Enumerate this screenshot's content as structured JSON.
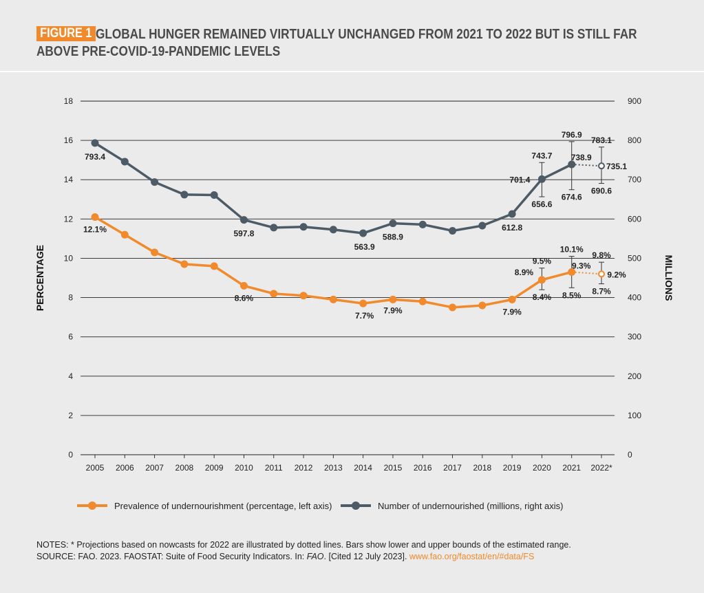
{
  "header": {
    "figure_label": "FIGURE 1",
    "title": "GLOBAL HUNGER REMAINED VIRTUALLY UNCHANGED FROM 2021 TO 2022 BUT IS STILL FAR ABOVE PRE-COVID-19-PANDEMIC LEVELS"
  },
  "colors": {
    "orange": "#f08a2c",
    "slate": "#4d5b66",
    "background": "#ebebeb"
  },
  "legend": [
    {
      "label": "Prevalence of undernourishment (percentage, left axis)",
      "color": "#f08a2c"
    },
    {
      "label": "Number of undernourished (millions, right axis)",
      "color": "#4d5b66"
    }
  ],
  "notes": {
    "line1": "NOTES: * Projections based on nowcasts for 2022 are illustrated by dotted lines. Bars show lower and upper bounds of the estimated range.",
    "source_prefix": "SOURCE: FAO. 2023. FAOSTAT: Suite of Food Security Indicators. In: ",
    "source_italic": "FAO",
    "source_mid": ". [Cited 12 July 2023]. ",
    "source_link": "www.fao.org/faostat/en/#data/FS"
  },
  "chart_data": {
    "type": "line",
    "categories": [
      "2005",
      "2006",
      "2007",
      "2008",
      "2009",
      "2010",
      "2011",
      "2012",
      "2013",
      "2014",
      "2015",
      "2016",
      "2017",
      "2018",
      "2019",
      "2020",
      "2021",
      "2022*"
    ],
    "ylabel_left": "PERCENTAGE",
    "ylabel_right": "MILLIONS",
    "ylim_left": [
      0,
      18
    ],
    "ylim_right": [
      0,
      900
    ],
    "yticks_left": [
      "0",
      "2",
      "4",
      "6",
      "8",
      "10",
      "12",
      "14",
      "16",
      "18"
    ],
    "yticks_right": [
      "0",
      "100",
      "200",
      "300",
      "400",
      "500",
      "600",
      "700",
      "800",
      "900"
    ],
    "grid": true,
    "series": [
      {
        "name": "Prevalence of undernourishment (percentage, left axis)",
        "axis": "left",
        "color": "#f08a2c",
        "values": [
          12.1,
          11.2,
          10.3,
          9.7,
          9.6,
          8.6,
          8.2,
          8.1,
          7.9,
          7.7,
          7.9,
          7.8,
          7.5,
          7.6,
          7.9,
          8.9,
          9.3,
          9.2
        ],
        "projected_from_index": 16,
        "data_labels": [
          {
            "index": 0,
            "text": "12.1%",
            "dx": 0,
            "dy": 22
          },
          {
            "index": 5,
            "text": "8.6%",
            "dx": 0,
            "dy": 22
          },
          {
            "index": 9,
            "text": "7.7%",
            "dx": 2,
            "dy": 22
          },
          {
            "index": 10,
            "text": "7.9%",
            "dx": 0,
            "dy": 20
          },
          {
            "index": 14,
            "text": "7.9%",
            "dx": 0,
            "dy": 22
          },
          {
            "index": 15,
            "text": "8.9%",
            "dx": -26,
            "dy": -7
          },
          {
            "index": 16,
            "text": "9.3%",
            "dx": 14,
            "dy": -5
          },
          {
            "index": 17,
            "text": "9.2%",
            "dx": 22,
            "dy": 5
          }
        ],
        "ranges": [
          {
            "index": 15,
            "low": 8.4,
            "high": 9.5,
            "low_text": "8.4%",
            "high_text": "9.5%"
          },
          {
            "index": 16,
            "low": 8.5,
            "high": 10.1,
            "low_text": "8.5%",
            "high_text": "10.1%"
          },
          {
            "index": 17,
            "low": 8.7,
            "high": 9.8,
            "low_text": "8.7%",
            "high_text": "9.8%"
          }
        ]
      },
      {
        "name": "Number of undernourished (millions, right axis)",
        "axis": "right",
        "color": "#4d5b66",
        "values": [
          793.4,
          746,
          694,
          662,
          661,
          597.8,
          578,
          580,
          573,
          563.9,
          588.9,
          586,
          570,
          583,
          612.8,
          701.4,
          738.9,
          735.1
        ],
        "projected_from_index": 16,
        "data_labels": [
          {
            "index": 0,
            "text": "793.4",
            "dx": 0,
            "dy": 24
          },
          {
            "index": 5,
            "text": "597.8",
            "dx": 0,
            "dy": 24
          },
          {
            "index": 9,
            "text": "563.9",
            "dx": 2,
            "dy": 24
          },
          {
            "index": 10,
            "text": "588.9",
            "dx": 0,
            "dy": 24
          },
          {
            "index": 14,
            "text": "612.8",
            "dx": 0,
            "dy": 24
          },
          {
            "index": 15,
            "text": "701.4",
            "dx": -32,
            "dy": 5
          },
          {
            "index": 16,
            "text": "738.9",
            "dx": 14,
            "dy": -6
          },
          {
            "index": 17,
            "text": "735.1",
            "dx": 22,
            "dy": 5
          }
        ],
        "ranges": [
          {
            "index": 15,
            "low": 656.6,
            "high": 743.7,
            "low_text": "656.6",
            "high_text": "743.7"
          },
          {
            "index": 16,
            "low": 674.6,
            "high": 796.9,
            "low_text": "674.6",
            "high_text": "796.9"
          },
          {
            "index": 17,
            "low": 690.6,
            "high": 783.1,
            "low_text": "690.6",
            "high_text": "783.1"
          }
        ]
      }
    ]
  }
}
